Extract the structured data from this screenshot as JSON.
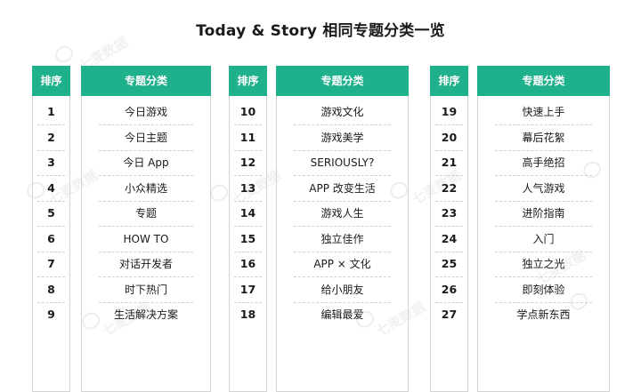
{
  "title": "Today & Story 相同专题分类一览",
  "headers": {
    "rank": "排序",
    "category": "专题分类"
  },
  "watermark": "七麦数据",
  "columns": [
    {
      "rows": [
        {
          "n": "1",
          "name": "今日游戏"
        },
        {
          "n": "2",
          "name": "今日主题"
        },
        {
          "n": "3",
          "name": "今日 App"
        },
        {
          "n": "4",
          "name": "小众精选"
        },
        {
          "n": "5",
          "name": "专题"
        },
        {
          "n": "6",
          "name": "HOW TO"
        },
        {
          "n": "7",
          "name": "对话开发者"
        },
        {
          "n": "8",
          "name": "时下热门"
        },
        {
          "n": "9",
          "name": "生活解决方案"
        }
      ]
    },
    {
      "rows": [
        {
          "n": "10",
          "name": "游戏文化"
        },
        {
          "n": "11",
          "name": "游戏美学"
        },
        {
          "n": "12",
          "name": "SERIOUSLY?"
        },
        {
          "n": "13",
          "name": "APP 改变生活"
        },
        {
          "n": "14",
          "name": "游戏人生"
        },
        {
          "n": "15",
          "name": "独立佳作"
        },
        {
          "n": "16",
          "name": "APP × 文化"
        },
        {
          "n": "17",
          "name": "给小朋友"
        },
        {
          "n": "18",
          "name": "编辑最爱"
        }
      ]
    },
    {
      "rows": [
        {
          "n": "19",
          "name": "快速上手"
        },
        {
          "n": "20",
          "name": "幕后花絮"
        },
        {
          "n": "21",
          "name": "高手绝招"
        },
        {
          "n": "22",
          "name": "人气游戏"
        },
        {
          "n": "23",
          "name": "进阶指南"
        },
        {
          "n": "24",
          "name": "入门"
        },
        {
          "n": "25",
          "name": "独立之光"
        },
        {
          "n": "26",
          "name": "即刻体验"
        },
        {
          "n": "27",
          "name": "学点新东西"
        }
      ]
    }
  ],
  "colors": {
    "header_bg": "#1fb08c",
    "header_text": "#ffffff",
    "border": "#d4d4d4"
  }
}
